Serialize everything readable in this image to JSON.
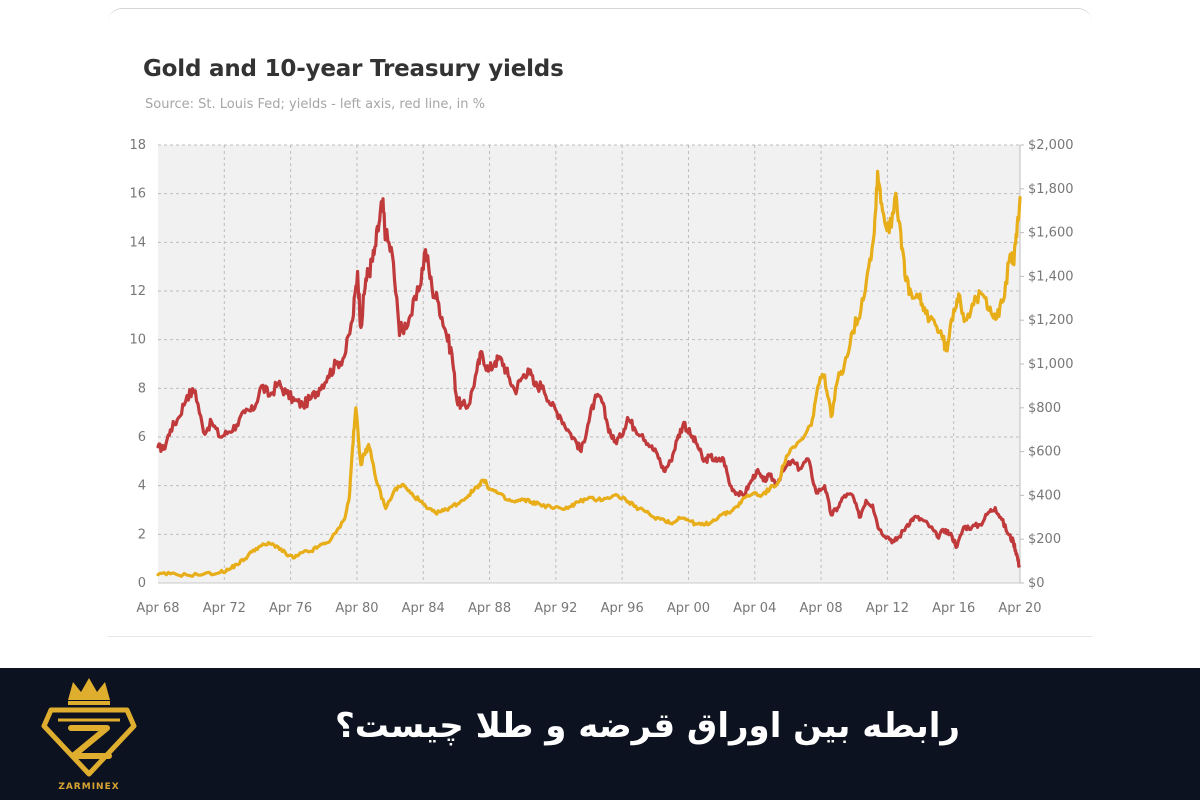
{
  "chart_data": {
    "type": "line",
    "title": "Gold and 10-year Treasury yields",
    "subtitle": "Source: St. Louis Fed; yields - left axis, red line, in %",
    "x_tick_labels": [
      "Apr 68",
      "Apr 72",
      "Apr 76",
      "Apr 80",
      "Apr 84",
      "Apr 88",
      "Apr 92",
      "Apr 96",
      "Apr 00",
      "Apr 04",
      "Apr 08",
      "Apr 12",
      "Apr 16",
      "Apr 20"
    ],
    "xlim": [
      1968.25,
      2020.3
    ],
    "y_left": {
      "range": [
        0,
        18
      ],
      "ticks": [
        "0",
        "2",
        "4",
        "6",
        "8",
        "10",
        "12",
        "14",
        "16",
        "18"
      ]
    },
    "y_right": {
      "range": [
        0,
        2000
      ],
      "ticks": [
        "$0",
        "$200",
        "$400",
        "$600",
        "$800",
        "$1,000",
        "$1,200",
        "$1,400",
        "$1,600",
        "$1,800",
        "$2,000"
      ]
    },
    "grid": true,
    "series": [
      {
        "axis": "left",
        "color": "#c0393b",
        "x": [
          1968.25,
          1968.6,
          1969.0,
          1969.5,
          1970.0,
          1970.5,
          1971.0,
          1971.5,
          1972.0,
          1972.5,
          1973.0,
          1973.5,
          1974.0,
          1974.5,
          1975.0,
          1975.5,
          1976.0,
          1976.5,
          1977.0,
          1977.5,
          1978.0,
          1978.5,
          1979.0,
          1979.5,
          1980.0,
          1980.3,
          1980.5,
          1980.8,
          1981.0,
          1981.3,
          1981.6,
          1981.8,
          1982.0,
          1982.4,
          1982.8,
          1983.0,
          1983.5,
          1984.0,
          1984.4,
          1984.8,
          1985.2,
          1985.6,
          1986.0,
          1986.3,
          1986.6,
          1987.0,
          1987.5,
          1987.8,
          1988.2,
          1988.6,
          1989.0,
          1989.4,
          1989.8,
          1990.2,
          1990.6,
          1991.0,
          1991.5,
          1992.0,
          1992.5,
          1993.0,
          1993.5,
          1993.8,
          1994.2,
          1994.6,
          1995.0,
          1995.4,
          1995.8,
          1996.2,
          1996.6,
          1997.0,
          1997.5,
          1998.0,
          1998.4,
          1998.8,
          1999.2,
          1999.6,
          2000.0,
          2000.4,
          2000.8,
          2001.2,
          2001.6,
          2002.0,
          2002.4,
          2002.8,
          2003.2,
          2003.6,
          2004.0,
          2004.4,
          2004.8,
          2005.2,
          2005.6,
          2006.0,
          2006.5,
          2007.0,
          2007.5,
          2008.0,
          2008.5,
          2008.9,
          2009.3,
          2009.7,
          2010.2,
          2010.6,
          2011.0,
          2011.4,
          2011.8,
          2012.3,
          2012.7,
          2013.0,
          2013.5,
          2013.9,
          2014.4,
          2014.9,
          2015.3,
          2015.8,
          2016.2,
          2016.5,
          2016.9,
          2017.4,
          2017.9,
          2018.4,
          2018.8,
          2019.2,
          2019.6,
          2019.9,
          2020.1,
          2020.25
        ],
        "values": [
          5.6,
          5.5,
          6.3,
          6.8,
          7.7,
          7.9,
          6.2,
          6.6,
          6.0,
          6.2,
          6.5,
          7.0,
          7.1,
          8.1,
          7.7,
          8.2,
          7.8,
          7.5,
          7.3,
          7.6,
          8.0,
          8.5,
          9.0,
          9.3,
          10.8,
          12.8,
          10.5,
          12.5,
          12.8,
          13.5,
          14.8,
          15.6,
          14.3,
          13.5,
          10.5,
          10.4,
          11.0,
          12.0,
          13.7,
          12.1,
          11.5,
          10.4,
          9.4,
          7.5,
          7.3,
          7.3,
          8.7,
          9.5,
          8.7,
          9.1,
          9.2,
          8.5,
          7.9,
          8.4,
          8.8,
          8.1,
          8.1,
          7.3,
          6.9,
          6.3,
          5.8,
          5.4,
          6.5,
          7.5,
          7.6,
          6.5,
          5.8,
          6.0,
          6.8,
          6.4,
          6.1,
          5.6,
          5.3,
          4.6,
          5.0,
          5.9,
          6.6,
          6.1,
          5.7,
          5.0,
          5.2,
          5.0,
          5.1,
          4.0,
          3.7,
          3.6,
          4.1,
          4.6,
          4.2,
          4.4,
          4.1,
          4.6,
          5.0,
          4.7,
          5.1,
          3.7,
          4.0,
          2.8,
          3.1,
          3.6,
          3.6,
          2.7,
          3.4,
          3.2,
          2.2,
          1.9,
          1.7,
          1.9,
          2.4,
          2.7,
          2.6,
          2.3,
          1.9,
          2.2,
          1.9,
          1.5,
          2.3,
          2.3,
          2.4,
          2.9,
          3.1,
          2.6,
          2.0,
          1.7,
          1.2,
          0.7
        ]
      },
      {
        "axis": "right",
        "color": "#e8ae1a",
        "x": [
          1968.25,
          1969.0,
          1970.0,
          1971.0,
          1972.0,
          1972.5,
          1973.0,
          1973.5,
          1974.0,
          1974.5,
          1975.0,
          1975.5,
          1976.0,
          1976.5,
          1977.0,
          1977.5,
          1978.0,
          1978.5,
          1979.0,
          1979.5,
          1979.8,
          1980.0,
          1980.2,
          1980.5,
          1980.8,
          1981.0,
          1981.5,
          1982.0,
          1982.5,
          1983.0,
          1983.5,
          1984.0,
          1984.5,
          1985.0,
          1985.5,
          1986.0,
          1986.5,
          1987.0,
          1987.5,
          1987.9,
          1988.3,
          1988.8,
          1989.3,
          1989.8,
          1990.3,
          1990.8,
          1991.3,
          1992.0,
          1992.6,
          1993.2,
          1993.6,
          1994.2,
          1994.8,
          1995.4,
          1996.0,
          1996.5,
          1997.0,
          1997.6,
          1998.2,
          1998.8,
          1999.3,
          1999.7,
          2000.2,
          2000.7,
          2001.2,
          2001.7,
          2002.2,
          2002.7,
          2003.2,
          2003.7,
          2004.2,
          2004.7,
          2005.2,
          2005.7,
          2006.2,
          2006.7,
          2007.2,
          2007.7,
          2008.1,
          2008.5,
          2008.9,
          2009.3,
          2009.7,
          2010.2,
          2010.7,
          2011.1,
          2011.5,
          2011.7,
          2012.0,
          2012.4,
          2012.8,
          2013.1,
          2013.4,
          2013.8,
          2014.2,
          2014.6,
          2015.1,
          2015.6,
          2015.9,
          2016.3,
          2016.6,
          2017.0,
          2017.5,
          2018.0,
          2018.5,
          2018.9,
          2019.3,
          2019.7,
          2019.9,
          2020.1,
          2020.3
        ],
        "values": [
          38,
          42,
          36,
          40,
          48,
          60,
          85,
          110,
          150,
          170,
          180,
          165,
          130,
          115,
          140,
          145,
          170,
          185,
          230,
          290,
          390,
          620,
          800,
          540,
          610,
          620,
          450,
          340,
          420,
          450,
          410,
          380,
          340,
          320,
          330,
          350,
          370,
          400,
          440,
          470,
          430,
          410,
          380,
          370,
          380,
          370,
          360,
          345,
          340,
          350,
          370,
          385,
          380,
          390,
          400,
          380,
          350,
          330,
          300,
          290,
          270,
          300,
          290,
          270,
          265,
          280,
          310,
          320,
          350,
          390,
          410,
          400,
          430,
          460,
          580,
          620,
          660,
          720,
          900,
          950,
          760,
          930,
          1000,
          1150,
          1250,
          1420,
          1600,
          1880,
          1700,
          1600,
          1780,
          1600,
          1380,
          1300,
          1300,
          1230,
          1200,
          1120,
          1060,
          1250,
          1320,
          1200,
          1270,
          1320,
          1260,
          1210,
          1290,
          1500,
          1470,
          1580,
          1760
        ]
      }
    ]
  },
  "banner": {
    "headline": "رابطه بین اوراق قرضه و طلا چیست؟",
    "brand_name": "ZARMINEX",
    "accent_color": "#e0ae2e",
    "background_color": "#0d1220",
    "logo_icon": "crowned-diamond-z-logo-icon"
  }
}
